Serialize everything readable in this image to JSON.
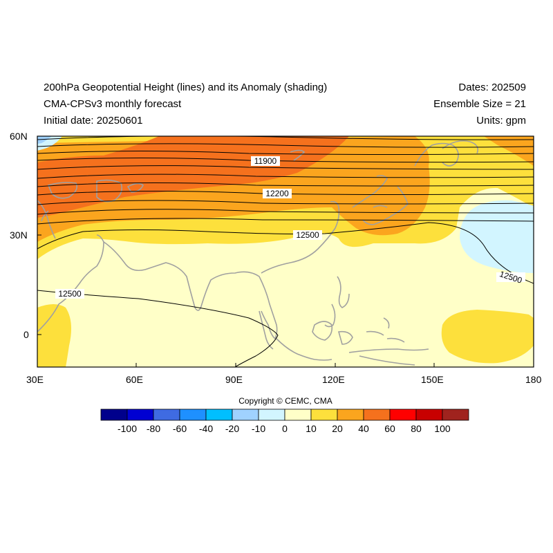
{
  "header": {
    "title_line1": "200hPa Geopotential Height (lines) and its Anomaly (shading)",
    "title_line2": "CMA-CPSv3 monthly forecast",
    "title_line3": "Initial date: 20250601",
    "dates": "Dates: 202509",
    "ensemble": "Ensemble Size = 21",
    "units": "Units: gpm"
  },
  "map": {
    "lon_range": [
      30,
      180
    ],
    "lat_range": [
      -10,
      60
    ],
    "lon_ticks": [
      "30E",
      "60E",
      "90E",
      "120E",
      "150E",
      "180"
    ],
    "lat_ticks": [
      "60N",
      "30N",
      "0"
    ],
    "contour_labels": [
      "11900",
      "12200",
      "12500",
      "12500",
      "12500"
    ],
    "coastline_color": "#a0a0a0"
  },
  "colorbar": {
    "colors": [
      "#00008c",
      "#0000d2",
      "#3f6be2",
      "#1e90ff",
      "#00bfff",
      "#a0d2ff",
      "#d2f5ff",
      "#ffffc8",
      "#fde03c",
      "#fba51e",
      "#f5711d",
      "#ff0000",
      "#c80000",
      "#a0231e"
    ],
    "labels": [
      "-100",
      "-80",
      "-60",
      "-40",
      "-20",
      "-10",
      "0",
      "10",
      "20",
      "40",
      "60",
      "80",
      "100"
    ]
  },
  "copyright": "Copyright © CEMC, CMA"
}
